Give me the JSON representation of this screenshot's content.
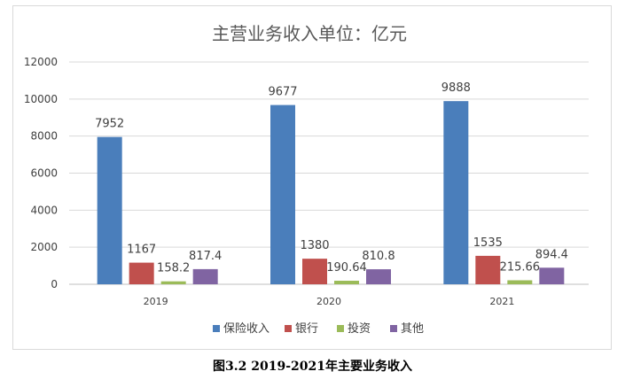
{
  "chart_data": {
    "type": "bar",
    "title": "主营业务收入单位：亿元",
    "categories": [
      "2019",
      "2020",
      "2021"
    ],
    "series": [
      {
        "name": "保险收入",
        "color": "#4a7ebb",
        "values": [
          7952,
          9677,
          9888
        ],
        "labels": [
          "7952",
          "9677",
          "9888"
        ]
      },
      {
        "name": "银行",
        "color": "#c0504d",
        "values": [
          1167,
          1380,
          1535
        ],
        "labels": [
          "1167",
          "1380",
          "1535"
        ]
      },
      {
        "name": "投资",
        "color": "#9bbb59",
        "values": [
          158.2,
          190.64,
          215.66
        ],
        "labels": [
          "158.2",
          "190.64",
          "215.66"
        ]
      },
      {
        "name": "其他",
        "color": "#8064a2",
        "values": [
          817.4,
          810.8,
          894.4
        ],
        "labels": [
          "817.4",
          "810.8",
          "894.4"
        ]
      }
    ],
    "yticks": [
      "0",
      "2000",
      "4000",
      "6000",
      "8000",
      "10000",
      "12000"
    ],
    "ylim": [
      0,
      12000
    ],
    "xlabel": "",
    "ylabel": "",
    "grid": true,
    "legend_position": "bottom"
  },
  "caption": "图3.2 2019-2021年主要业务收入"
}
